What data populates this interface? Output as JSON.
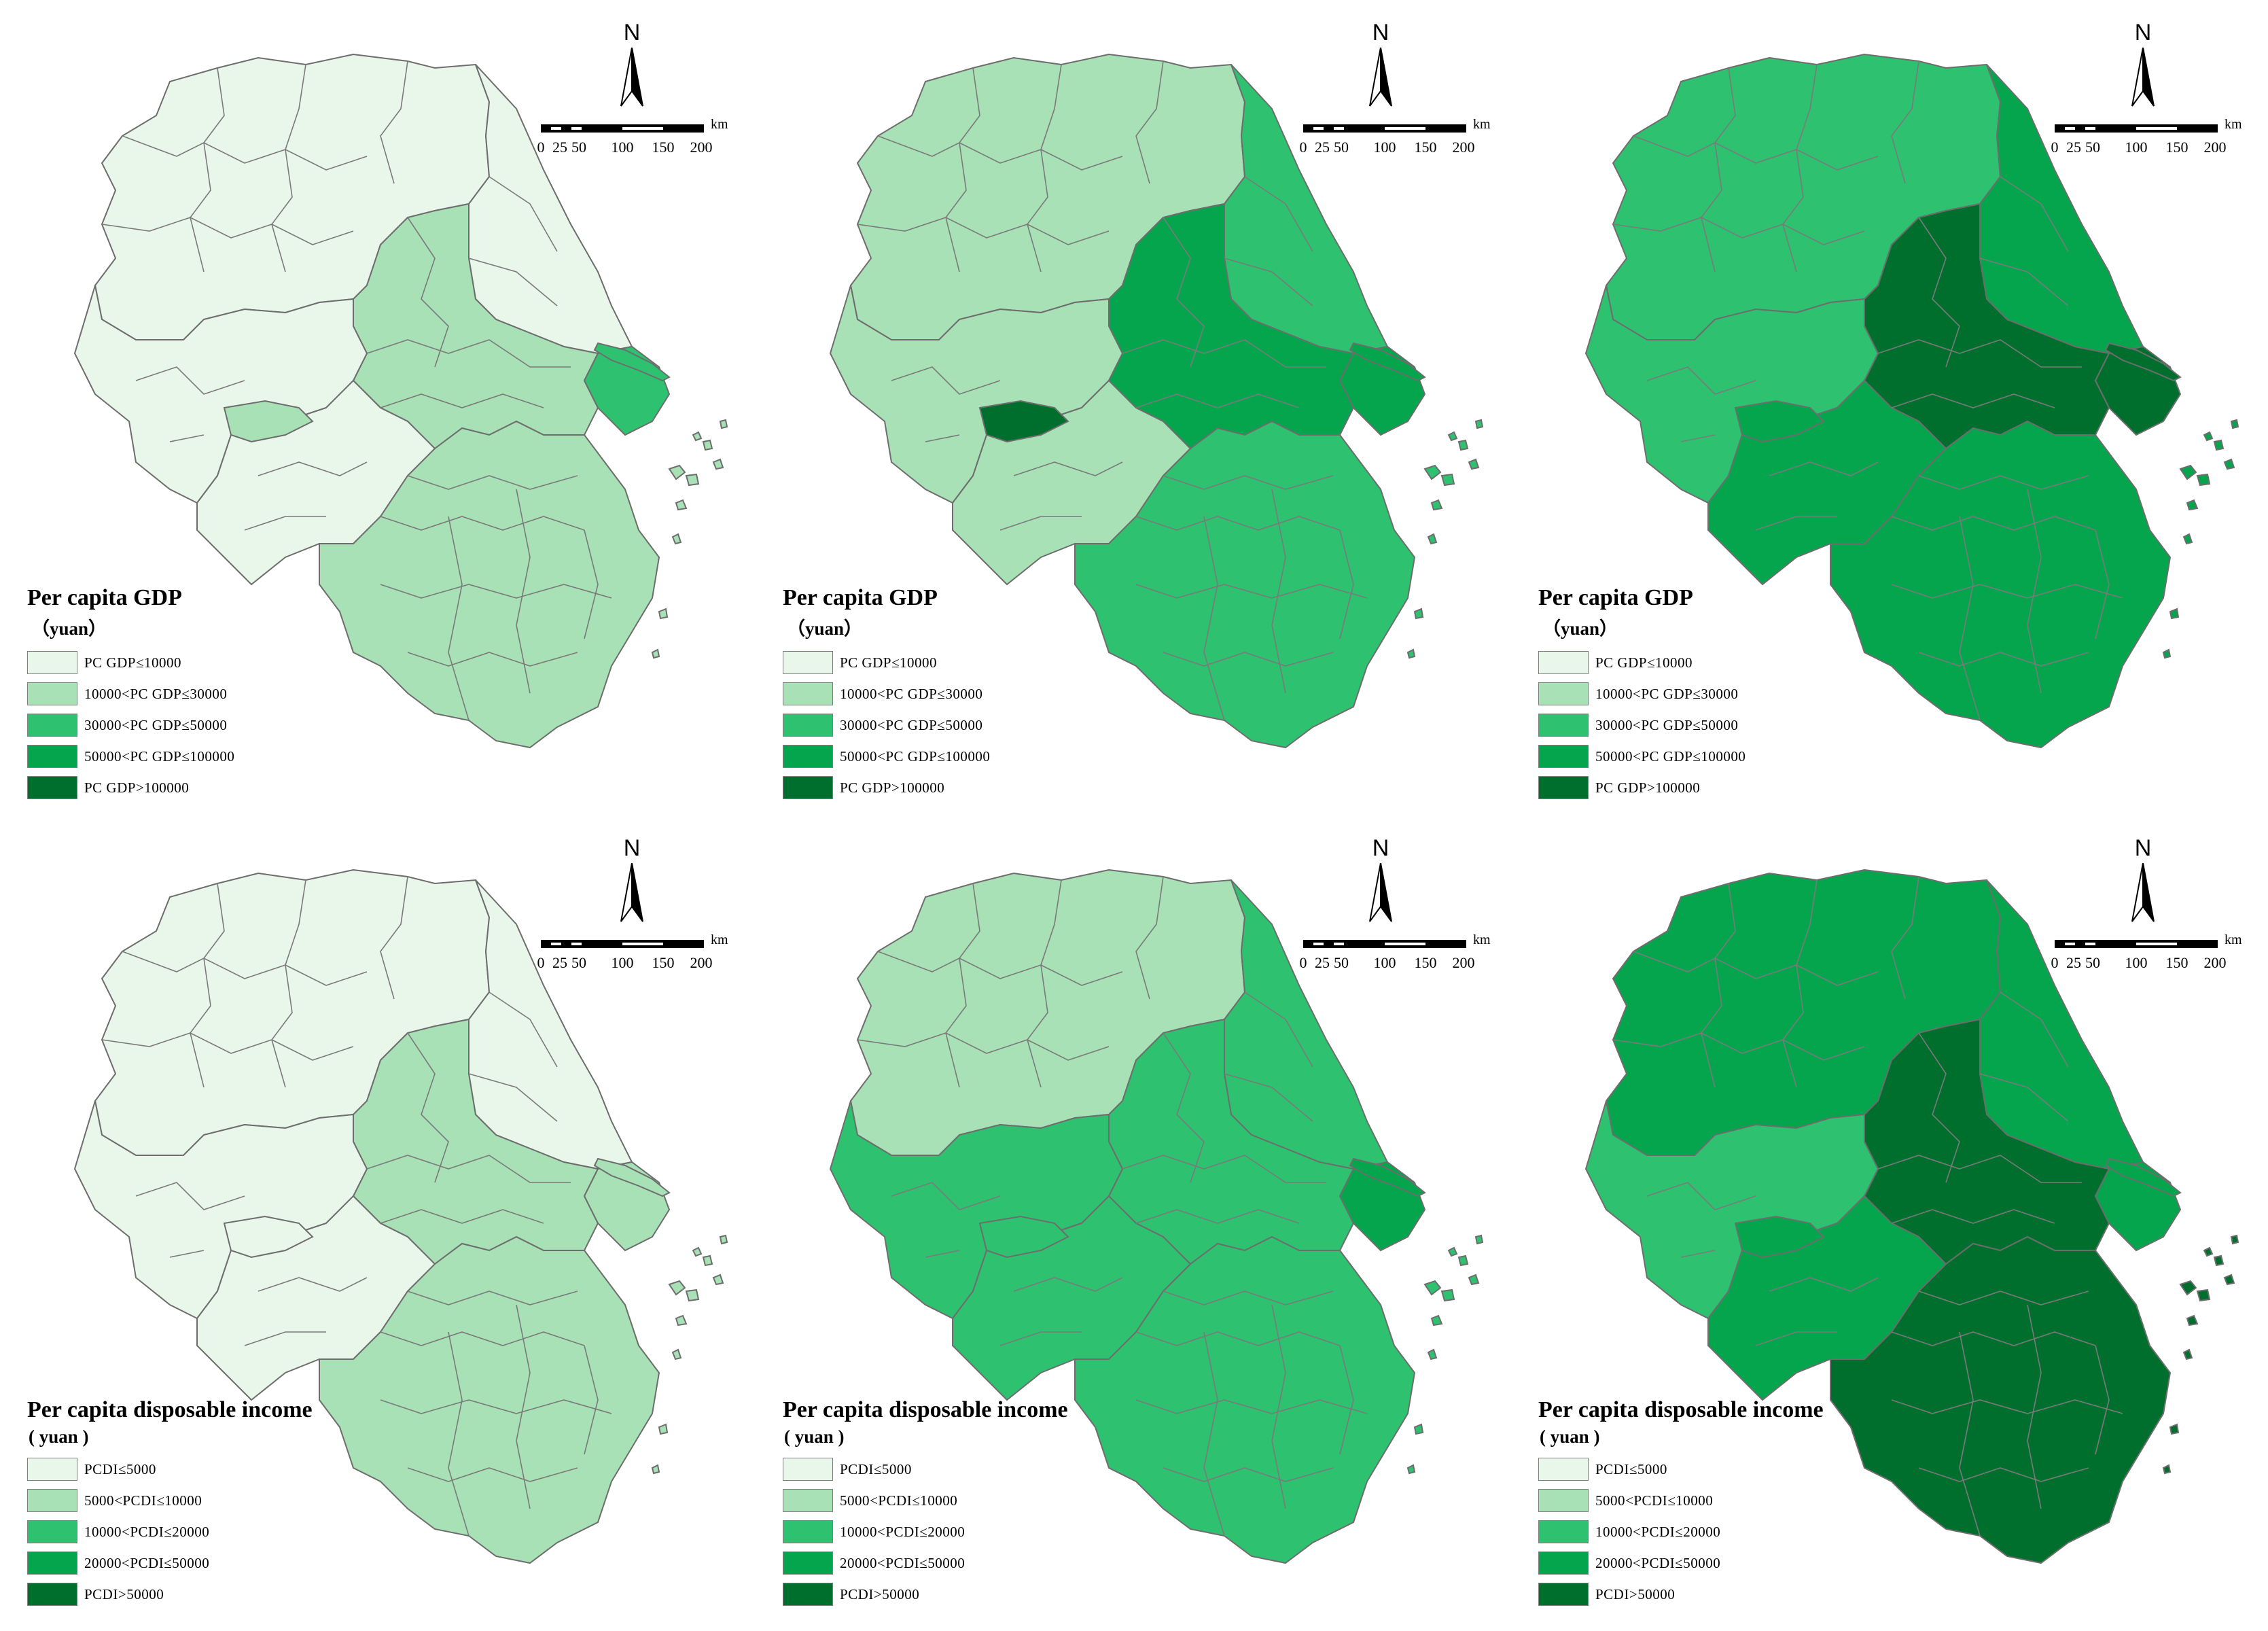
{
  "colors": {
    "c1": "#e9f6ea",
    "c2": "#a7e1b5",
    "c3": "#2ec16f",
    "c4": "#04a54d",
    "c5": "#006f2e",
    "border": "#6d6d6d"
  },
  "common": {
    "north_label": "N",
    "scale_unit": "km",
    "scale_ticks": [
      "0",
      "25",
      "50",
      "100",
      "150",
      "200"
    ]
  },
  "legends": {
    "gdp": {
      "title": "Per capita GDP",
      "unit": "（yuan）",
      "classes": [
        "PC GDP≤10000",
        "10000<PC GDP≤30000",
        "30000<PC GDP≤50000",
        "50000<PC GDP≤100000",
        "PC GDP>100000"
      ]
    },
    "pcdi": {
      "title": "Per capita disposable income",
      "unit": "( yuan )",
      "classes": [
        "PCDI≤5000",
        "5000<PCDI≤10000",
        "10000<PCDI≤20000",
        "20000<PCDI≤50000",
        "PCDI>50000"
      ]
    }
  },
  "panels": [
    {
      "indicator": "gdp",
      "zones": {
        "nw": 1,
        "ne": 1,
        "center": 2,
        "sh": 3,
        "west": 1,
        "sw": 1,
        "south": 2,
        "enclave": 2
      }
    },
    {
      "indicator": "gdp",
      "zones": {
        "nw": 2,
        "ne": 3,
        "center": 4,
        "sh": 4,
        "west": 2,
        "sw": 2,
        "south": 3,
        "enclave": 5
      }
    },
    {
      "indicator": "gdp",
      "zones": {
        "nw": 3,
        "ne": 4,
        "center": 5,
        "sh": 5,
        "west": 3,
        "sw": 4,
        "south": 4,
        "enclave": 4
      }
    },
    {
      "indicator": "pcdi",
      "zones": {
        "nw": 1,
        "ne": 1,
        "center": 2,
        "sh": 2,
        "west": 1,
        "sw": 1,
        "south": 2,
        "enclave": 1
      }
    },
    {
      "indicator": "pcdi",
      "zones": {
        "nw": 2,
        "ne": 3,
        "center": 3,
        "sh": 4,
        "west": 3,
        "sw": 3,
        "south": 3,
        "enclave": 3
      }
    },
    {
      "indicator": "pcdi",
      "zones": {
        "nw": 4,
        "ne": 4,
        "center": 5,
        "sh": 4,
        "west": 3,
        "sw": 4,
        "south": 5,
        "enclave": 4
      }
    }
  ]
}
